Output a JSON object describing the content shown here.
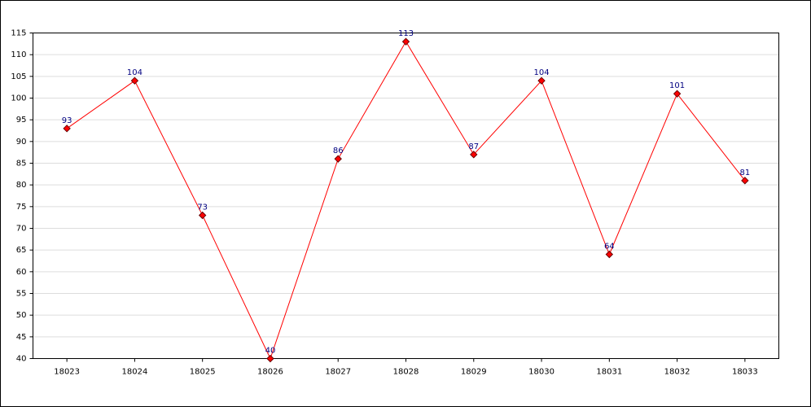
{
  "chart_data": {
    "type": "line",
    "categories": [
      "18023",
      "18024",
      "18025",
      "18026",
      "18027",
      "18028",
      "18029",
      "18030",
      "18031",
      "18032",
      "18033"
    ],
    "series": [
      {
        "color": "#ff0000",
        "values": [
          93,
          104,
          73,
          40,
          86,
          113,
          87,
          104,
          64,
          101,
          81
        ]
      }
    ],
    "ylim": [
      40,
      115
    ],
    "yticks": [
      40,
      45,
      50,
      55,
      60,
      65,
      70,
      75,
      80,
      85,
      90,
      95,
      100,
      105,
      110,
      115
    ],
    "grid": true
  }
}
